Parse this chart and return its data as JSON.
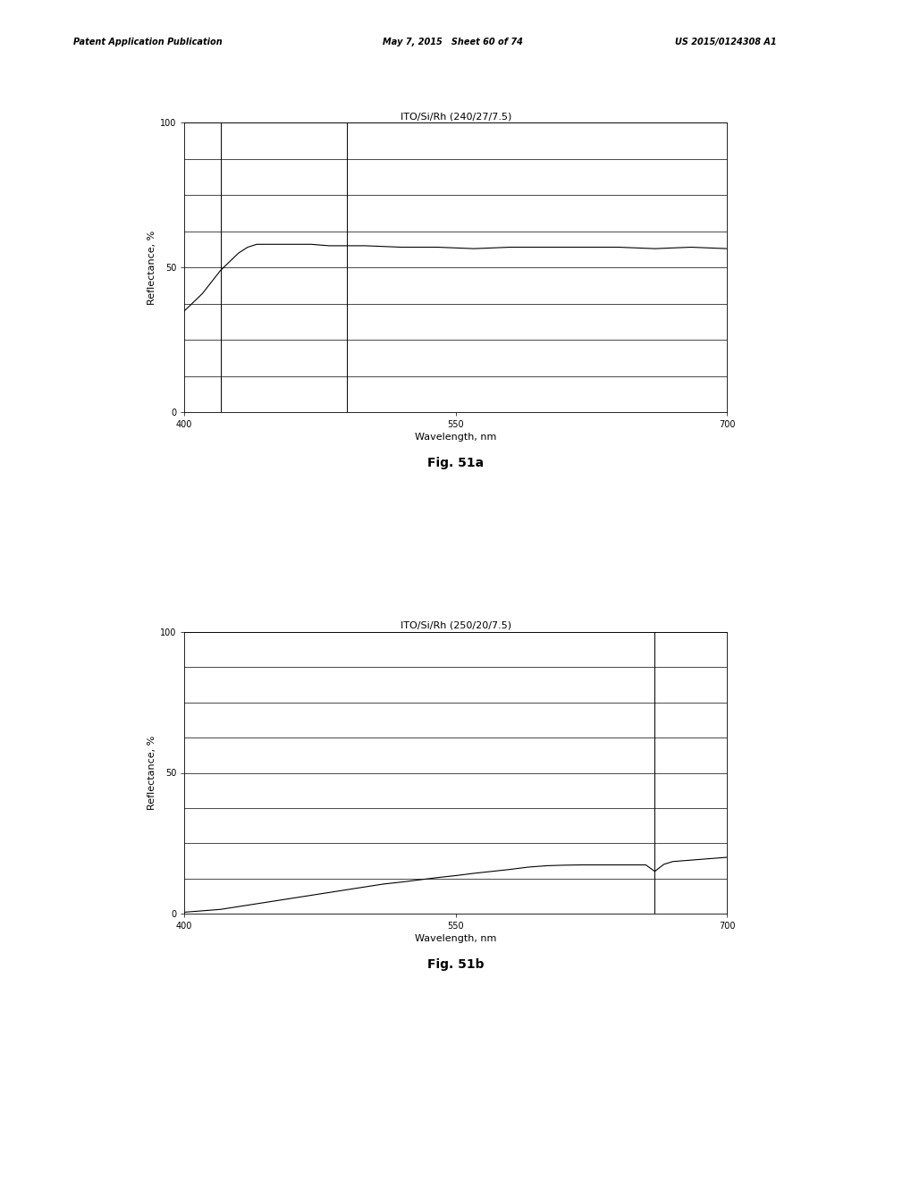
{
  "fig_a": {
    "title": "ITO/Si/Rh (240/27/7.5)",
    "xlabel": "Wavelength, nm",
    "ylabel": "Reflectance, %",
    "xlim": [
      400,
      700
    ],
    "ylim": [
      0,
      100
    ],
    "xticks": [
      400,
      550,
      700
    ],
    "yticks": [
      0,
      50,
      100
    ],
    "ygrid_lines": [
      0,
      12.5,
      25,
      37.5,
      50,
      62.5,
      75,
      87.5,
      100
    ],
    "vlines": [
      420,
      490
    ],
    "curve_x": [
      400,
      405,
      410,
      415,
      420,
      425,
      430,
      435,
      440,
      450,
      460,
      470,
      480,
      490,
      500,
      520,
      540,
      560,
      580,
      600,
      620,
      640,
      660,
      680,
      700
    ],
    "curve_y": [
      35,
      38,
      41,
      45,
      49,
      52,
      55,
      57,
      58,
      58,
      58,
      58,
      57.5,
      57.5,
      57.5,
      57,
      57,
      56.5,
      57,
      57,
      57,
      57,
      56.5,
      57,
      56.5
    ],
    "fig_label": "Fig. 51a"
  },
  "fig_b": {
    "title": "ITO/Si/Rh (250/20/7.5)",
    "xlabel": "Wavelength, nm",
    "ylabel": "Reflectance, %",
    "xlim": [
      400,
      700
    ],
    "ylim": [
      0,
      100
    ],
    "xticks": [
      400,
      550,
      700
    ],
    "yticks": [
      0,
      50,
      100
    ],
    "ygrid_lines": [
      0,
      12.5,
      25,
      37.5,
      50,
      62.5,
      75,
      87.5,
      100
    ],
    "vlines": [
      660
    ],
    "curve_x": [
      400,
      410,
      420,
      430,
      440,
      450,
      460,
      470,
      480,
      490,
      500,
      510,
      520,
      530,
      540,
      550,
      560,
      570,
      580,
      590,
      600,
      610,
      620,
      630,
      640,
      650,
      655,
      660,
      665,
      670,
      680,
      690,
      700
    ],
    "curve_y": [
      0.5,
      1.0,
      1.5,
      2.5,
      3.5,
      4.5,
      5.5,
      6.5,
      7.5,
      8.5,
      9.5,
      10.5,
      11.2,
      12.0,
      12.8,
      13.5,
      14.3,
      15.0,
      15.7,
      16.5,
      17.0,
      17.2,
      17.3,
      17.3,
      17.3,
      17.3,
      17.3,
      15.0,
      17.5,
      18.5,
      19.0,
      19.5,
      20.0
    ],
    "fig_label": "Fig. 51b"
  },
  "header_left": "Patent Application Publication",
  "header_mid": "May 7, 2015   Sheet 60 of 74",
  "header_right": "US 2015/0124308 A1",
  "background_color": "#ffffff",
  "curve_color": "#000000",
  "grid_color": "#555555",
  "font_size_title": 8,
  "font_size_axis": 8,
  "font_size_tick": 7,
  "font_size_header": 7,
  "font_size_figlabel": 10
}
